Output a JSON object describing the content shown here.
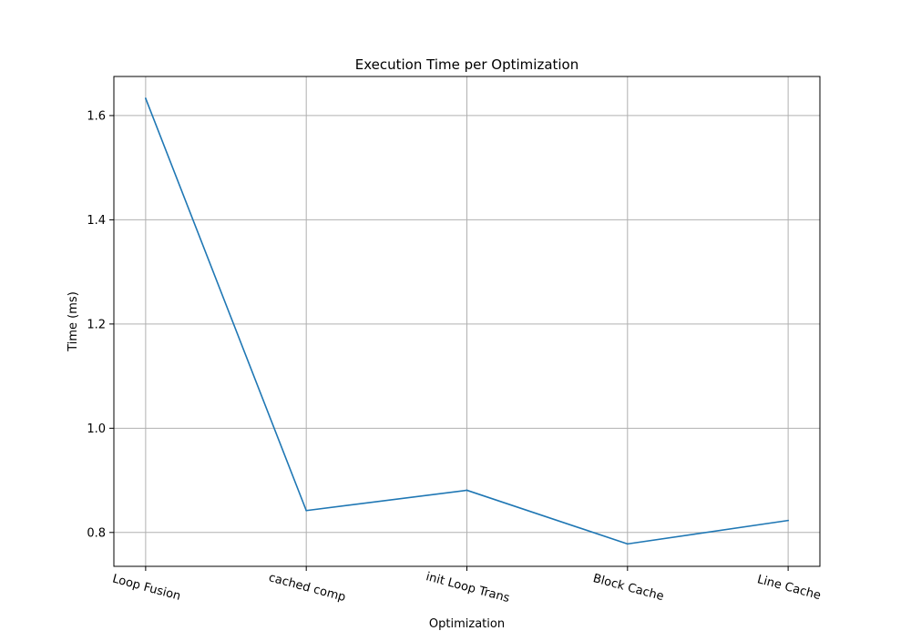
{
  "chart_data": {
    "type": "line",
    "title": "Execution Time per Optimization",
    "xlabel": "Optimization",
    "ylabel": "Time (ms)",
    "categories": [
      "Loop Fusion",
      "cached comp",
      "init Loop Trans",
      "Block Cache",
      "Line Cache"
    ],
    "series": [
      {
        "values": [
          1.633,
          0.842,
          0.881,
          0.778,
          0.823
        ]
      }
    ],
    "ylim": [
      0.735,
      1.675
    ],
    "yticks": [
      0.8,
      1.0,
      1.2,
      1.4,
      1.6
    ],
    "ytick_labels": [
      "0.8",
      "1.0",
      "1.2",
      "1.4",
      "1.6"
    ],
    "x_tick_rotation_deg": -15,
    "grid": true,
    "line_color": "#1f77b4"
  }
}
